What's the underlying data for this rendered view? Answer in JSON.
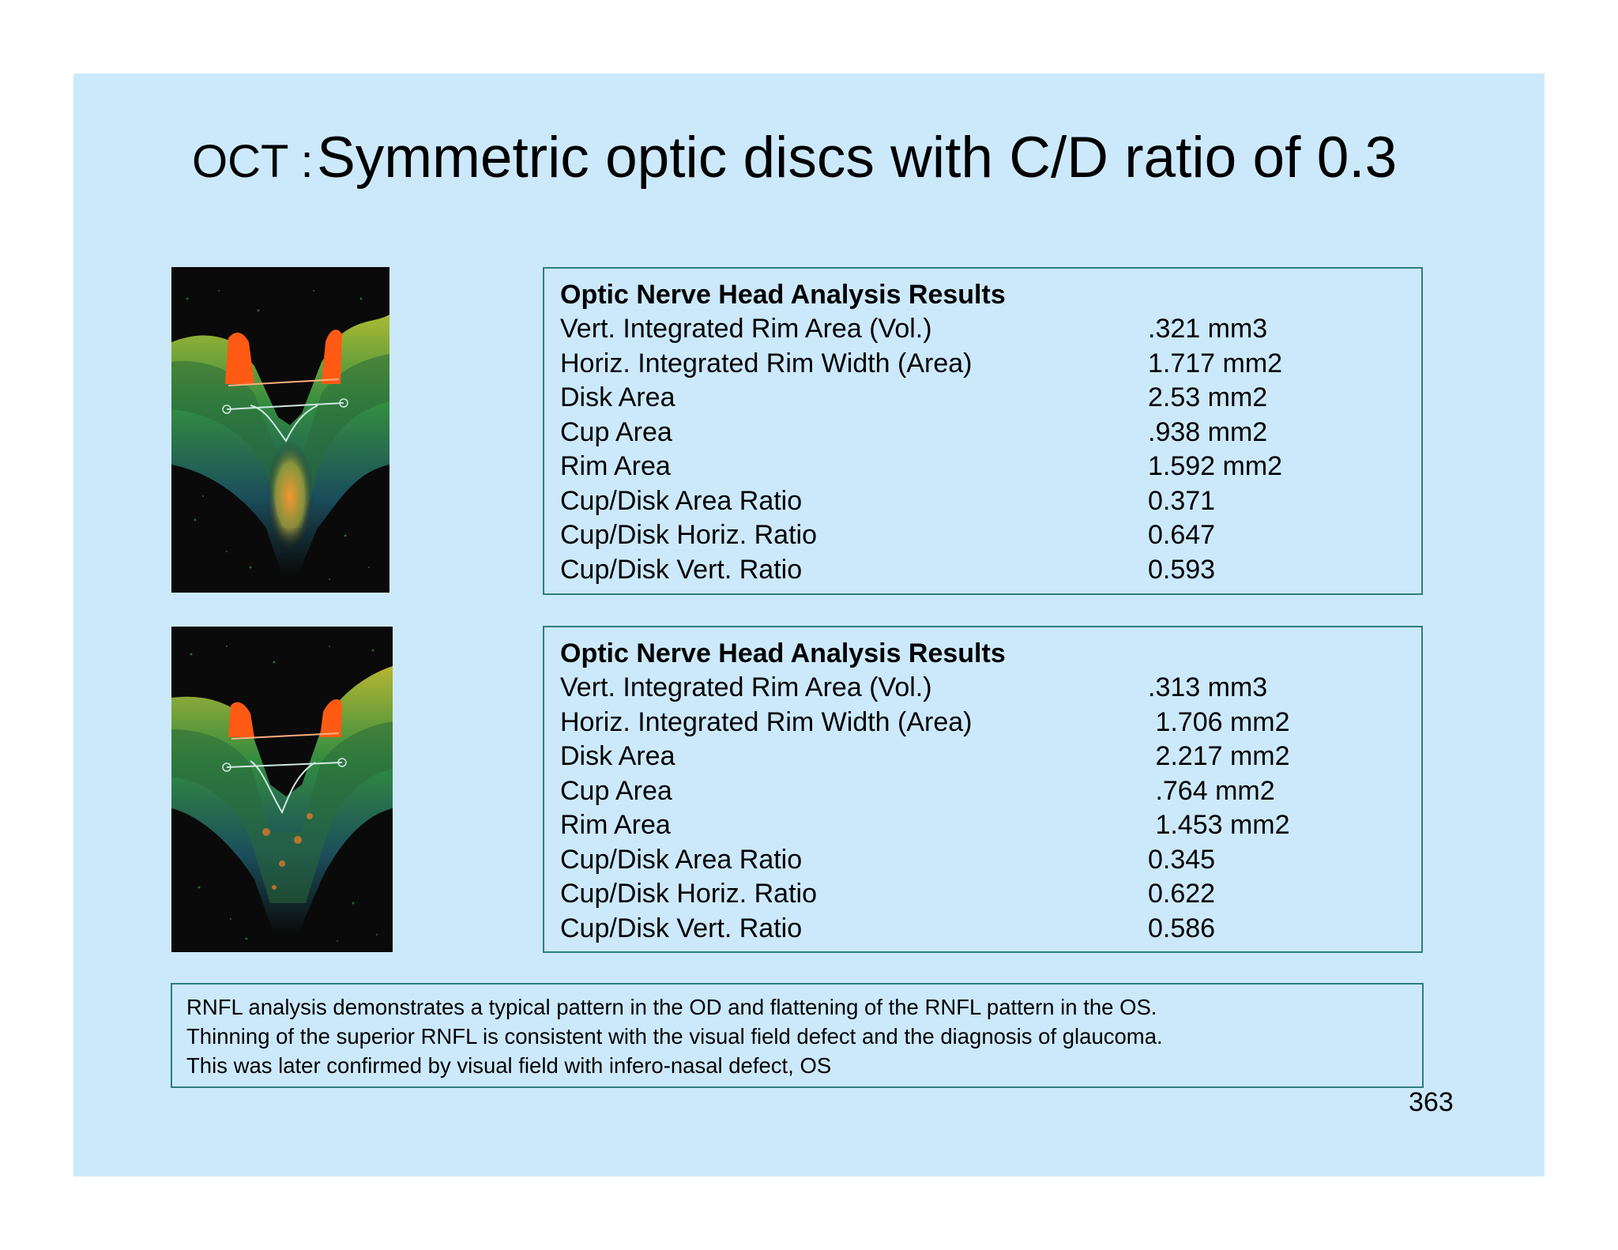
{
  "slide": {
    "background": "#cce9fc",
    "border_color": "#2e7d7d",
    "title_prefix": "OCT :",
    "title_main": "Symmetric optic discs with C/D ratio of 0.3",
    "page_number": "363"
  },
  "images": {
    "od": {
      "kind": "oct-cross-section-od"
    },
    "os": {
      "kind": "oct-cross-section-os"
    }
  },
  "results": [
    {
      "heading": "Optic Nerve Head Analysis Results",
      "rows": [
        {
          "label": "Vert. Integrated Rim Area (Vol.)",
          "value": ".321 mm3"
        },
        {
          "label": "Horiz. Integrated Rim Width (Area)",
          "value": "1.717 mm2"
        },
        {
          "label": "Disk Area",
          "value": "2.53 mm2"
        },
        {
          "label": "Cup Area",
          "value": ".938 mm2"
        },
        {
          "label": "Rim Area",
          "value": "1.592 mm2"
        },
        {
          "label": "Cup/Disk Area Ratio",
          "value": "0.371"
        },
        {
          "label": "Cup/Disk Horiz. Ratio",
          "value": "0.647"
        },
        {
          "label": "Cup/Disk Vert. Ratio",
          "value": "0.593"
        }
      ]
    },
    {
      "heading": "Optic Nerve Head Analysis Results",
      "rows": [
        {
          "label": "Vert. Integrated Rim Area (Vol.)",
          "value": ".313 mm3"
        },
        {
          "label": "Horiz. Integrated Rim Width (Area)",
          "value": " 1.706 mm2"
        },
        {
          "label": "Disk Area",
          "value": " 2.217 mm2"
        },
        {
          "label": "Cup Area",
          "value": " .764 mm2"
        },
        {
          "label": "Rim Area",
          "value": " 1.453 mm2"
        },
        {
          "label": "Cup/Disk Area Ratio",
          "value": "0.345"
        },
        {
          "label": "Cup/Disk Horiz. Ratio",
          "value": "0.622"
        },
        {
          "label": "Cup/Disk Vert. Ratio",
          "value": "0.586"
        }
      ]
    }
  ],
  "summary": {
    "lines": [
      "RNFL analysis demonstrates a typical pattern in the OD and flattening of the RNFL pattern in the OS.",
      "Thinning of the superior RNFL is consistent with the visual field defect and the diagnosis of glaucoma.",
      "This was later confirmed by visual field with infero-nasal defect, OS"
    ]
  }
}
